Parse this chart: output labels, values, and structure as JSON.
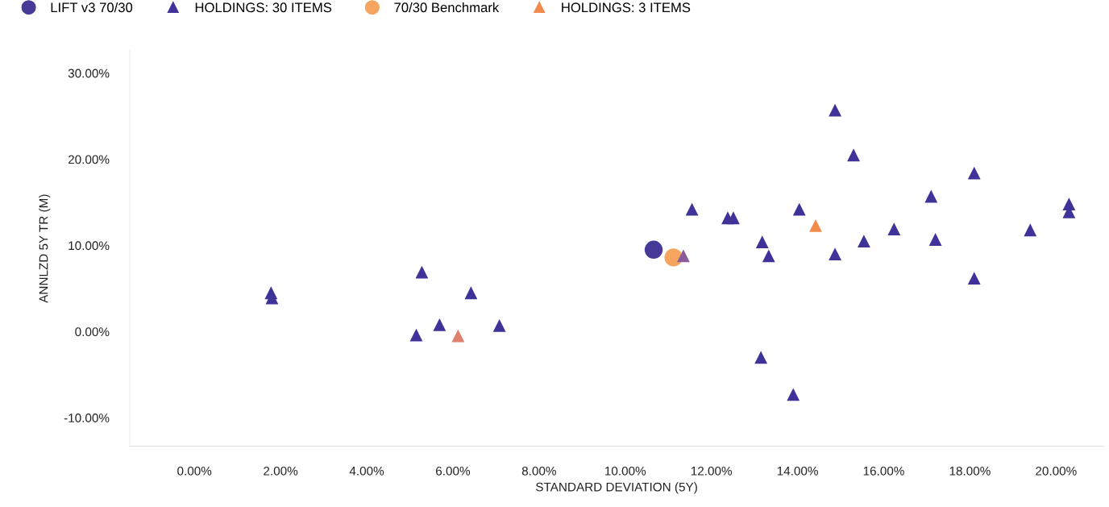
{
  "chart_data": {
    "type": "scatter",
    "xlabel": "STANDARD DEVIATION (5Y)",
    "ylabel": "ANNLZD 5Y TR (M)",
    "xlim": [
      -1.5,
      21.1
    ],
    "ylim": [
      -13.3,
      32.6
    ],
    "xticks": [
      {
        "value": 0,
        "label": "0.00%"
      },
      {
        "value": 2,
        "label": "2.00%"
      },
      {
        "value": 4,
        "label": "4.00%"
      },
      {
        "value": 6,
        "label": "6.00%"
      },
      {
        "value": 8,
        "label": "8.00%"
      },
      {
        "value": 10,
        "label": "10.00%"
      },
      {
        "value": 12,
        "label": "12.00%"
      },
      {
        "value": 14,
        "label": "14.00%"
      },
      {
        "value": 16,
        "label": "16.00%"
      },
      {
        "value": 18,
        "label": "18.00%"
      },
      {
        "value": 20,
        "label": "20.00%"
      }
    ],
    "yticks": [
      {
        "value": -10,
        "label": "-10.00%"
      },
      {
        "value": 0,
        "label": "0.00%"
      },
      {
        "value": 10,
        "label": "10.00%"
      },
      {
        "value": 20,
        "label": "20.00%"
      },
      {
        "value": 30,
        "label": "30.00%"
      }
    ],
    "grid": false,
    "legend": "top left",
    "series": [
      {
        "name": "LIFT v3 70/30",
        "color": "#463a98",
        "marker": "circle",
        "x": [
          10.66
        ],
        "values": [
          9.5
        ]
      },
      {
        "name": "HOLDINGS: 30 ITEMS",
        "color": "#3f3399",
        "marker": "triangle",
        "x": [
          1.78,
          1.8,
          5.28,
          5.69,
          5.15,
          6.42,
          7.08,
          11.55,
          12.38,
          12.51,
          13.18,
          13.33,
          13.15,
          13.9,
          14.04,
          14.87,
          15.3,
          14.87,
          15.54,
          16.24,
          17.1,
          17.2,
          18.1,
          18.1,
          19.4,
          20.3,
          20.3
        ],
        "values": [
          4.5,
          3.9,
          6.9,
          0.8,
          -0.4,
          4.5,
          0.7,
          14.2,
          13.2,
          13.2,
          10.4,
          8.8,
          -3.0,
          -7.3,
          14.2,
          25.7,
          20.5,
          9.0,
          10.5,
          11.9,
          15.7,
          10.7,
          18.4,
          6.2,
          11.8,
          14.8,
          13.9
        ]
      },
      {
        "name": "70/30 Benchmark",
        "color": "#f6a55e",
        "marker": "circle",
        "x": [
          11.12
        ],
        "values": [
          8.6
        ]
      },
      {
        "name": "HOLDINGS: 3 ITEMS",
        "color": "#f28a4a",
        "colors": [
          "#e07f6e",
          "#8a5c9a",
          "#f28a4a"
        ],
        "marker": "triangle",
        "x": [
          6.12,
          11.35,
          14.42
        ],
        "values": [
          -0.5,
          8.8,
          12.3
        ]
      }
    ]
  }
}
